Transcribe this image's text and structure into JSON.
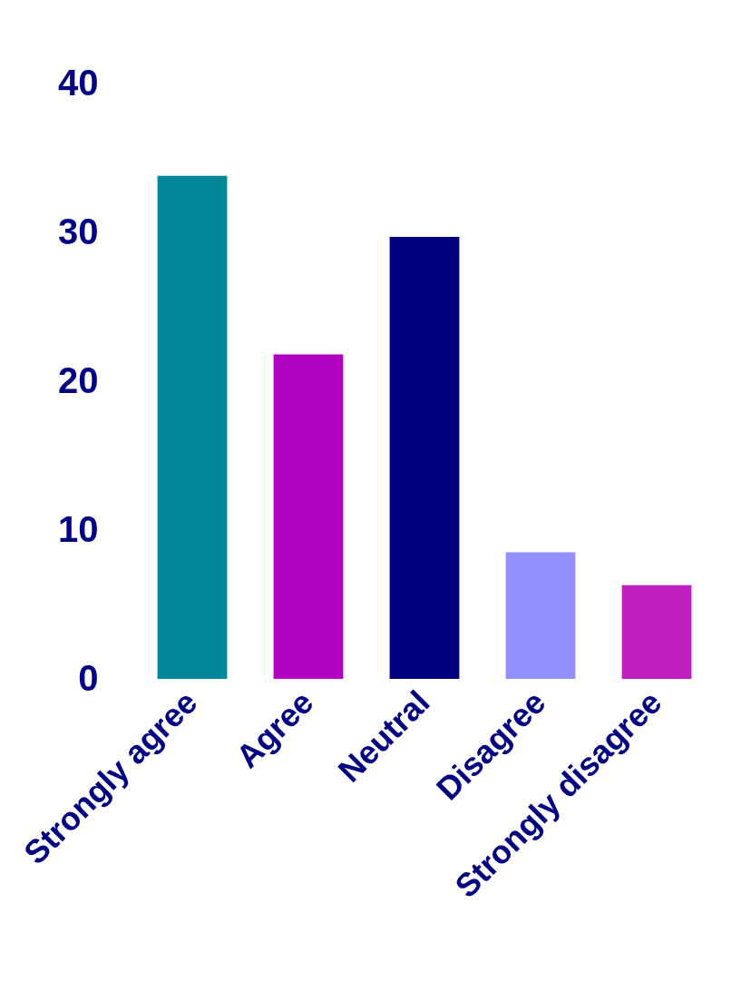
{
  "chart_data": {
    "type": "bar",
    "categories": [
      "Strongly agree",
      "Agree",
      "Neutral",
      "Disagree",
      "Strongly disagree"
    ],
    "values": [
      33.8,
      21.8,
      29.7,
      8.5,
      6.3
    ],
    "colors": [
      "#00889a",
      "#b000c0",
      "#000080",
      "#9090ff",
      "#c020c0"
    ],
    "ylim": [
      0,
      40
    ],
    "yticks": [
      0,
      10,
      20,
      30,
      40
    ],
    "grid": false
  }
}
